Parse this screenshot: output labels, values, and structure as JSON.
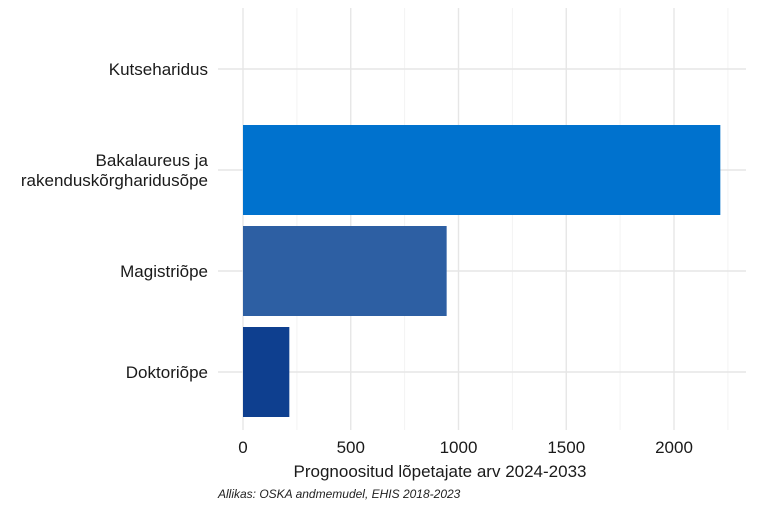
{
  "chart_data": {
    "type": "bar",
    "orientation": "horizontal",
    "categories": [
      [
        "Kutseharidus"
      ],
      [
        "Bakalaureus ja",
        "rakenduskõrgharidusõpe"
      ],
      [
        "Magistriõpe"
      ],
      [
        "Doktoriõpe"
      ]
    ],
    "values": [
      0,
      2215,
      945,
      215
    ],
    "colors": [
      "#0072ce",
      "#0072ce",
      "#2d5fa3",
      "#0e3f8f"
    ],
    "xlabel": "Prognoositud lõpetajate arv 2024-2033",
    "ylabel": "",
    "xlim": [
      0,
      2330
    ],
    "xticks": [
      0,
      500,
      1000,
      1500,
      2000
    ],
    "xtick_labels": [
      "0",
      "500",
      "1000",
      "1500",
      "2000"
    ],
    "grid": true,
    "legend": "none"
  },
  "caption": "Allikas: OSKA andmemudel, EHIS 2018-2023"
}
